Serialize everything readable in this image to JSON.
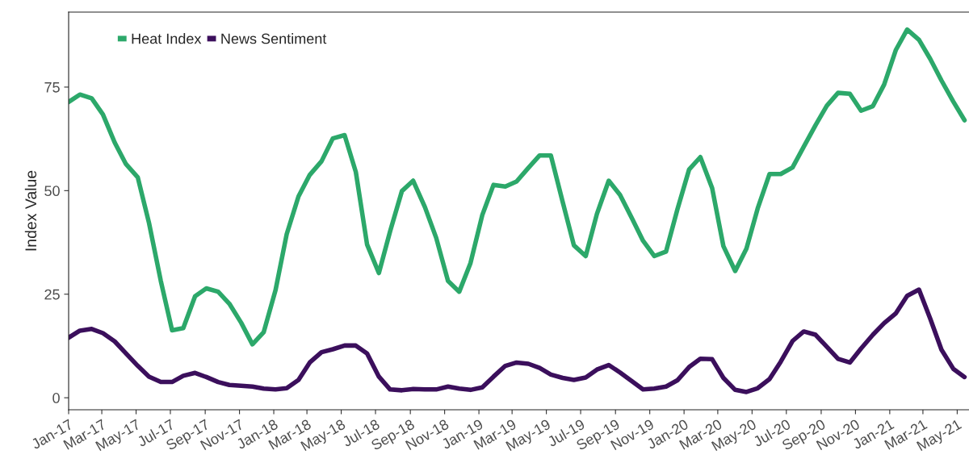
{
  "chart_data": {
    "type": "line",
    "ylabel": "Index Value",
    "x": [
      "2017-01-01",
      "2017-01-21",
      "2017-02-11",
      "2017-03-03",
      "2017-03-24",
      "2017-04-13",
      "2017-05-04",
      "2017-05-24",
      "2017-06-14",
      "2017-07-04",
      "2017-07-24",
      "2017-08-14",
      "2017-09-03",
      "2017-09-24",
      "2017-10-14",
      "2017-11-04",
      "2017-11-24",
      "2017-12-14",
      "2018-01-04",
      "2018-01-24",
      "2018-02-14",
      "2018-03-06",
      "2018-03-27",
      "2018-04-16",
      "2018-05-07",
      "2018-05-27",
      "2018-06-16",
      "2018-07-07",
      "2018-07-27",
      "2018-08-17",
      "2018-09-06",
      "2018-09-27",
      "2018-10-17",
      "2018-11-07",
      "2018-11-27",
      "2018-12-17",
      "2019-01-07",
      "2019-01-27",
      "2019-02-17",
      "2019-03-09",
      "2019-03-30",
      "2019-04-19",
      "2019-05-09",
      "2019-05-30",
      "2019-06-19",
      "2019-07-10",
      "2019-07-30",
      "2019-08-20",
      "2019-09-09",
      "2019-09-30",
      "2019-10-20",
      "2019-11-09",
      "2019-11-30",
      "2019-12-20",
      "2020-01-10",
      "2020-01-30",
      "2020-02-20",
      "2020-03-11",
      "2020-04-01",
      "2020-04-21",
      "2020-05-11",
      "2020-06-01",
      "2020-06-21",
      "2020-07-12",
      "2020-08-01",
      "2020-08-22",
      "2020-09-11",
      "2020-10-01",
      "2020-10-22",
      "2020-11-11",
      "2020-12-02",
      "2020-12-22",
      "2021-01-12",
      "2021-02-01",
      "2021-02-22",
      "2021-03-14",
      "2021-04-03",
      "2021-04-24",
      "2021-05-14"
    ],
    "series": [
      {
        "name": "Heat Index",
        "color": "#2ca86a",
        "values": [
          71.4,
          73.2,
          72.3,
          68.4,
          61.6,
          56.4,
          53.2,
          42.2,
          28.2,
          16.3,
          16.8,
          24.5,
          26.4,
          25.6,
          22.7,
          18.1,
          12.9,
          15.8,
          25.9,
          39.5,
          48.6,
          53.8,
          57.1,
          62.6,
          63.4,
          54.5,
          37.0,
          30.1,
          40.2,
          49.9,
          52.4,
          46.0,
          38.6,
          28.2,
          25.6,
          32.5,
          44.1,
          51.4,
          51.0,
          52.2,
          55.5,
          58.5,
          58.5,
          47.3,
          36.8,
          34.2,
          44.4,
          52.4,
          49.0,
          43.4,
          37.9,
          34.2,
          35.3,
          45.4,
          55.1,
          58.1,
          50.6,
          36.6,
          30.6,
          36.0,
          45.7,
          54.0,
          54.0,
          55.6,
          60.6,
          65.8,
          70.5,
          73.6,
          73.4,
          69.3,
          70.4,
          75.6,
          84.0,
          88.9,
          86.4,
          81.8,
          76.6,
          71.5,
          67.0
        ]
      },
      {
        "name": "News Sentiment",
        "color": "#3b0f5c",
        "values": [
          14.5,
          16.2,
          16.6,
          15.6,
          13.6,
          10.7,
          7.7,
          5.1,
          3.8,
          3.8,
          5.3,
          6.0,
          5.0,
          3.8,
          3.1,
          2.9,
          2.7,
          2.2,
          2.0,
          2.3,
          4.3,
          8.5,
          11.0,
          11.7,
          12.6,
          12.6,
          10.7,
          5.1,
          2.0,
          1.8,
          2.1,
          2.0,
          2.0,
          2.7,
          2.2,
          1.9,
          2.5,
          5.1,
          7.7,
          8.5,
          8.2,
          7.2,
          5.6,
          4.8,
          4.3,
          4.9,
          6.8,
          7.9,
          6.1,
          4.0,
          2.0,
          2.2,
          2.7,
          4.2,
          7.4,
          9.4,
          9.3,
          4.8,
          1.9,
          1.4,
          2.3,
          4.5,
          8.7,
          13.7,
          16.0,
          15.2,
          12.3,
          9.4,
          8.5,
          11.9,
          15.2,
          18.0,
          20.4,
          24.6,
          26.1,
          19.1,
          11.6,
          7.0,
          5.0
        ]
      }
    ],
    "xlim": [
      "2017-01-01",
      "2021-05-22"
    ],
    "xticks": [
      {
        "value": "2017-01",
        "label": "Jan-17"
      },
      {
        "value": "2017-03",
        "label": "Mar-17"
      },
      {
        "value": "2017-05",
        "label": "May-17"
      },
      {
        "value": "2017-07",
        "label": "Jul-17"
      },
      {
        "value": "2017-09",
        "label": "Sep-17"
      },
      {
        "value": "2017-11",
        "label": "Nov-17"
      },
      {
        "value": "2018-01",
        "label": "Jan-18"
      },
      {
        "value": "2018-03",
        "label": "Mar-18"
      },
      {
        "value": "2018-05",
        "label": "May-18"
      },
      {
        "value": "2018-07",
        "label": "Jul-18"
      },
      {
        "value": "2018-09",
        "label": "Sep-18"
      },
      {
        "value": "2018-11",
        "label": "Nov-18"
      },
      {
        "value": "2019-01",
        "label": "Jan-19"
      },
      {
        "value": "2019-03",
        "label": "Mar-19"
      },
      {
        "value": "2019-05",
        "label": "May-19"
      },
      {
        "value": "2019-07",
        "label": "Jul-19"
      },
      {
        "value": "2019-09",
        "label": "Sep-19"
      },
      {
        "value": "2019-11",
        "label": "Nov-19"
      },
      {
        "value": "2020-01",
        "label": "Jan-20"
      },
      {
        "value": "2020-03",
        "label": "Mar-20"
      },
      {
        "value": "2020-05",
        "label": "May-20"
      },
      {
        "value": "2020-07",
        "label": "Jul-20"
      },
      {
        "value": "2020-09",
        "label": "Sep-20"
      },
      {
        "value": "2020-11",
        "label": "Nov-20"
      },
      {
        "value": "2021-01",
        "label": "Jan-21"
      },
      {
        "value": "2021-03",
        "label": "Mar-21"
      },
      {
        "value": "2021-05",
        "label": "May-21"
      }
    ],
    "ylim": [
      -2.9,
      93.1
    ],
    "yticks": [
      0,
      25,
      50,
      75
    ],
    "grid": false,
    "legend": "top left",
    "marker": "none",
    "line_style": "solid"
  }
}
